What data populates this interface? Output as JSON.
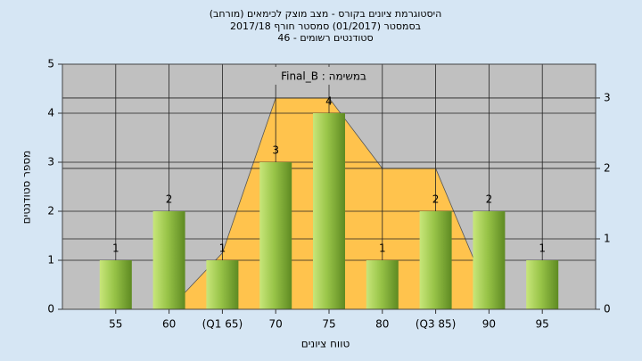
{
  "chart_data": {
    "type": "bar",
    "title": [
      "(היסטוגרמת ציונים בקורס - מצב מוצק לכימאים (מורחב",
      "בסמסטר  (01/2017)  סמסטר חורף 2017/18",
      "46 - סטודנטים רשומים"
    ],
    "annotation": "Final_B : במשימה",
    "x_label": "טווח ציונים",
    "y_label": "מספר סטודנטים",
    "categories": [
      "55",
      "60",
      "(Q1 65)",
      "70",
      "75",
      "80",
      "(Q3 85)",
      "90",
      "95"
    ],
    "series": [
      {
        "type": "bar",
        "color": "#8fbc3c",
        "values": [
          1,
          2,
          1,
          3,
          4,
          1,
          2,
          2,
          1
        ]
      },
      {
        "type": "area",
        "axis": "y2",
        "color": "#ffc34d",
        "values": [
          null,
          0,
          0.8,
          3,
          3,
          2,
          2,
          0.2,
          null
        ]
      }
    ],
    "ylim": [
      0,
      5
    ],
    "yticks": [
      0,
      1,
      2,
      3,
      4,
      5
    ],
    "y2lim": [
      0,
      3.48
    ],
    "y2ticks": [
      0,
      1,
      2,
      3
    ],
    "grid": true
  }
}
